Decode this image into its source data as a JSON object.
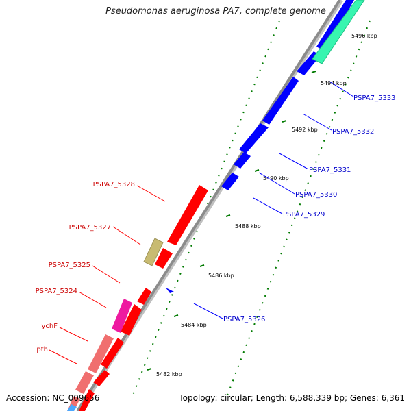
{
  "title": "Pseudomonas aeruginosa PA7, complete genome",
  "footer": {
    "accession": "Accession: NC_009656",
    "topology": "Topology: circular; Length: 6,588,339 bp; Genes: 6,361"
  },
  "colors": {
    "forward_gene": "#ff0000",
    "reverse_gene": "#0000ff",
    "backbone": "#8c8c8c",
    "tick": "#007a00",
    "rna": "#c8bb72",
    "pink_gene": "#f06f6f",
    "magenta_gene": "#ee1aa0",
    "teal_gene": "#38f5b0"
  },
  "scale_ticks": [
    "5482 kbp",
    "5484 kbp",
    "5486 kbp",
    "5488 kbp",
    "5490 kbp",
    "5492 kbp",
    "5494 kbp",
    "5496 kbp"
  ],
  "labels_left": [
    "PSPA7_5328",
    "PSPA7_5327",
    "PSPA7_5325",
    "PSPA7_5324",
    "ychF",
    "pth"
  ],
  "labels_right": [
    "PSPA7_5333",
    "PSPA7_5332",
    "PSPA7_5331",
    "PSPA7_5330",
    "PSPA7_5329",
    "PSPA7_5326"
  ]
}
